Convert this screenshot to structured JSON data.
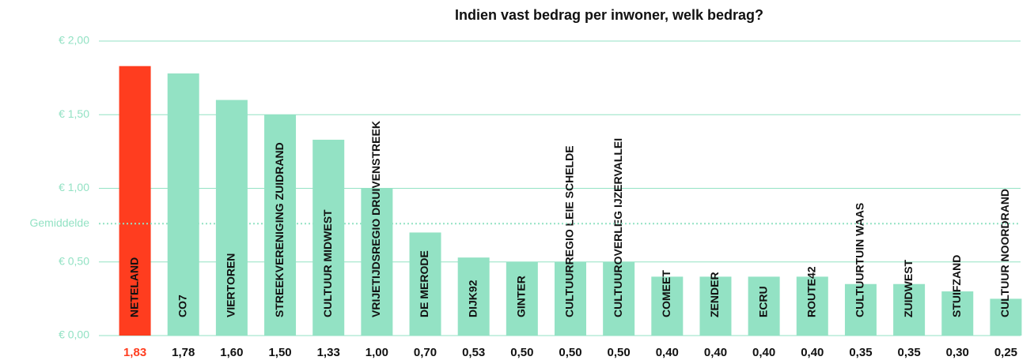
{
  "chart_data": {
    "type": "bar",
    "title": "Indien vast bedrag per inwoner, welk bedrag?",
    "categories": [
      "NETELAND",
      "CO7",
      "VIERTOREN",
      "STREEKVERENIGING ZUIDRAND",
      "CULTUUR MIDWEST",
      "VRIJETIJDSREGIO DRUIVENSTREEK",
      "DE MERODE",
      "DIJK92",
      "GINTER",
      "CULTUURREGIO LEIE SCHELDE",
      "CULTUUROVERLEG IJZERVALLEI",
      "COMEET",
      "ZENDER",
      "ECRU",
      "ROUTE42",
      "CULTUURTUIN WAAS",
      "ZUIDWEST",
      "STUIFZAND",
      "CULTUUR NOORDRAND"
    ],
    "values": [
      1.83,
      1.78,
      1.6,
      1.5,
      1.33,
      1.0,
      0.7,
      0.53,
      0.5,
      0.5,
      0.5,
      0.4,
      0.4,
      0.4,
      0.4,
      0.35,
      0.35,
      0.3,
      0.25
    ],
    "value_labels": [
      "1,83",
      "1,78",
      "1,60",
      "1,50",
      "1,33",
      "1,00",
      "0,70",
      "0,53",
      "0,50",
      "0,50",
      "0,50",
      "0,40",
      "0,40",
      "0,40",
      "0,40",
      "0,35",
      "0,35",
      "0,30",
      "0,25"
    ],
    "color": "#93e2c4",
    "colors": [
      "#ff3d1f",
      "#93e2c4",
      "#93e2c4",
      "#93e2c4",
      "#93e2c4",
      "#93e2c4",
      "#93e2c4",
      "#93e2c4",
      "#93e2c4",
      "#93e2c4",
      "#93e2c4",
      "#93e2c4",
      "#93e2c4",
      "#93e2c4",
      "#93e2c4",
      "#93e2c4",
      "#93e2c4",
      "#93e2c4",
      "#93e2c4"
    ],
    "ylim": [
      0,
      2
    ],
    "yticks": [
      {
        "value": 0,
        "label": "€ 0,00"
      },
      {
        "value": 0.5,
        "label": "€ 0,50"
      },
      {
        "value": 1,
        "label": "€ 1,00"
      },
      {
        "value": 1.5,
        "label": "€ 1,50"
      },
      {
        "value": 2,
        "label": "€ 2,00"
      }
    ],
    "grid": true,
    "average": {
      "label": "Gemiddelde",
      "value": 0.76
    }
  }
}
